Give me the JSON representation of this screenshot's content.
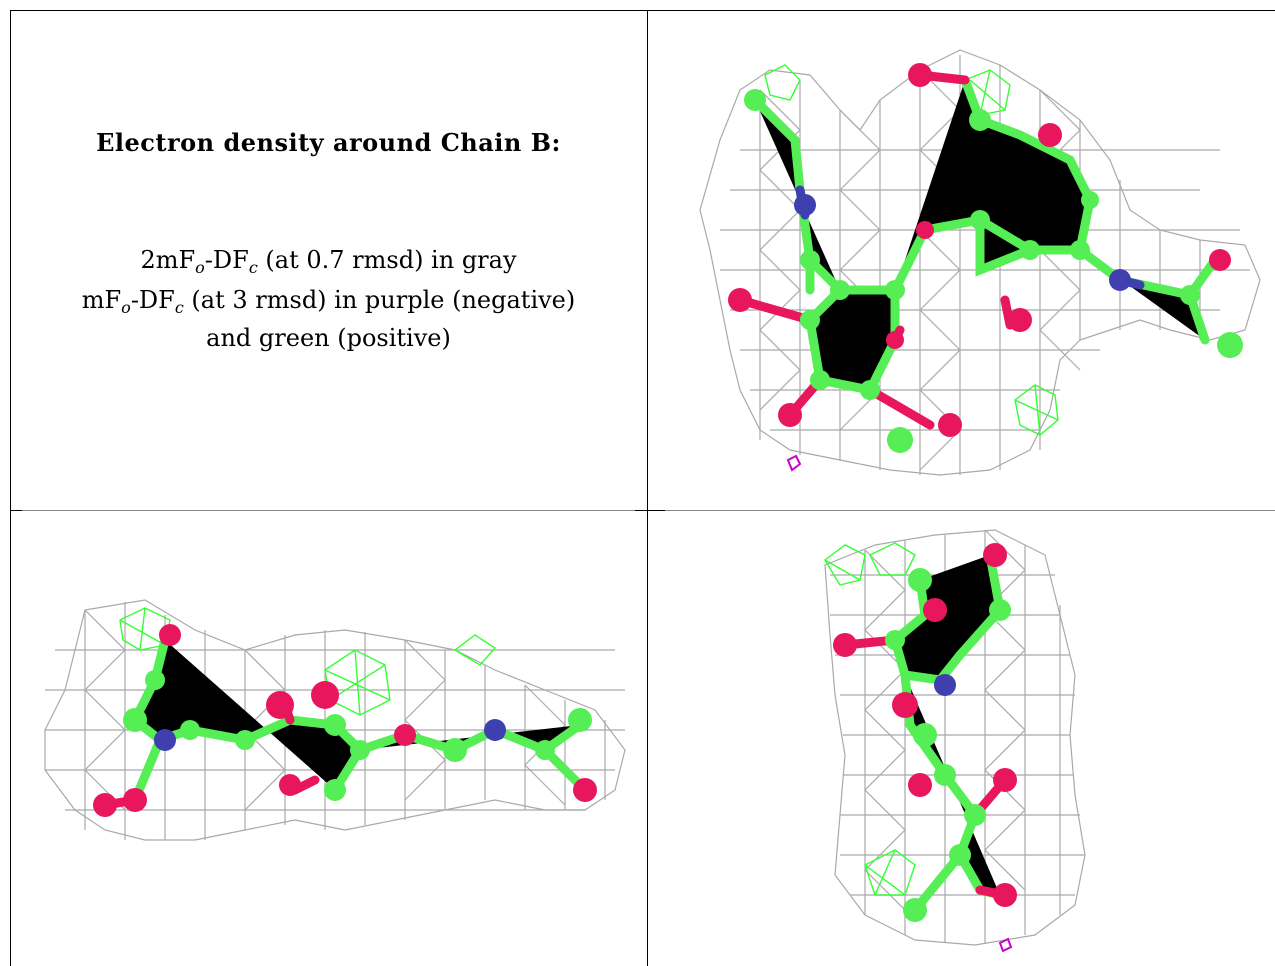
{
  "caption": {
    "title": "Electron density around Chain B:",
    "line1": {
      "a": "2mF",
      "b": "o",
      "c": "-DF",
      "d": "c",
      "e": " (at 0.7 rmsd) in gray"
    },
    "line2": {
      "a": "mF",
      "b": "o",
      "c": "-DF",
      "d": "c",
      "e": " (at 3 rmsd) in purple (negative)"
    },
    "line3": "and green (positive)"
  },
  "colors": {
    "mesh_gray": "#a9a9a9",
    "mesh_green": "#33ff33",
    "mesh_purple": "#cc00cc",
    "carbon": "#55ee55",
    "oxygen": "#e8175d",
    "nitrogen": "#3f3fb0"
  }
}
